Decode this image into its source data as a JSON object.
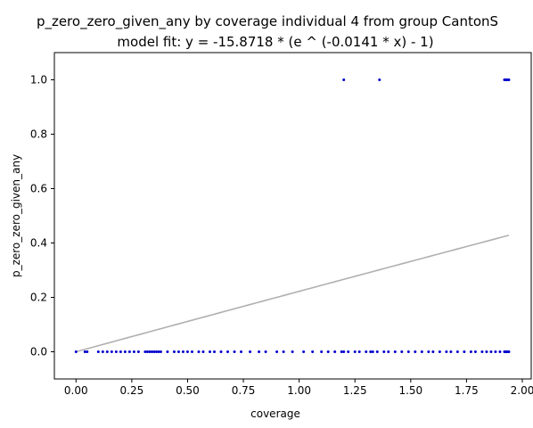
{
  "chart_data": {
    "type": "scatter",
    "title": "p_zero_zero_given_any by coverage individual 4 from group CantonS",
    "subtitle": "model fit: y = -15.8718 * (e ^ (-0.0141 * x) - 1)",
    "xlabel": "coverage",
    "ylabel": "p_zero_zero_given_any",
    "xlim": [
      -0.097,
      2.04
    ],
    "ylim": [
      -0.1,
      1.1
    ],
    "x_ticks": [
      0.0,
      0.25,
      0.5,
      0.75,
      1.0,
      1.25,
      1.5,
      1.75,
      2.0
    ],
    "x_tick_labels": [
      "0.00",
      "0.25",
      "0.50",
      "0.75",
      "1.00",
      "1.25",
      "1.50",
      "1.75",
      "2.00"
    ],
    "y_ticks": [
      0.0,
      0.2,
      0.4,
      0.6,
      0.8,
      1.0
    ],
    "y_tick_labels": [
      "0.0",
      "0.2",
      "0.4",
      "0.6",
      "0.8",
      "1.0"
    ],
    "grid": false,
    "point_color": "#0000cc",
    "line_color": "#b0b0b0",
    "fit": {
      "a": -15.8718,
      "b": -0.0141,
      "x_range": [
        0.0,
        1.94
      ]
    },
    "points": [
      {
        "x": 0.0,
        "y": 0.0
      },
      {
        "x": 0.04,
        "y": 0.0
      },
      {
        "x": 0.05,
        "y": 0.0
      },
      {
        "x": 0.1,
        "y": 0.0
      },
      {
        "x": 0.12,
        "y": 0.0
      },
      {
        "x": 0.14,
        "y": 0.0
      },
      {
        "x": 0.16,
        "y": 0.0
      },
      {
        "x": 0.18,
        "y": 0.0
      },
      {
        "x": 0.2,
        "y": 0.0
      },
      {
        "x": 0.22,
        "y": 0.0
      },
      {
        "x": 0.24,
        "y": 0.0
      },
      {
        "x": 0.26,
        "y": 0.0
      },
      {
        "x": 0.28,
        "y": 0.0
      },
      {
        "x": 0.31,
        "y": 0.0
      },
      {
        "x": 0.32,
        "y": 0.0
      },
      {
        "x": 0.33,
        "y": 0.0
      },
      {
        "x": 0.34,
        "y": 0.0
      },
      {
        "x": 0.35,
        "y": 0.0
      },
      {
        "x": 0.36,
        "y": 0.0
      },
      {
        "x": 0.37,
        "y": 0.0
      },
      {
        "x": 0.38,
        "y": 0.0
      },
      {
        "x": 0.41,
        "y": 0.0
      },
      {
        "x": 0.44,
        "y": 0.0
      },
      {
        "x": 0.46,
        "y": 0.0
      },
      {
        "x": 0.48,
        "y": 0.0
      },
      {
        "x": 0.5,
        "y": 0.0
      },
      {
        "x": 0.52,
        "y": 0.0
      },
      {
        "x": 0.55,
        "y": 0.0
      },
      {
        "x": 0.57,
        "y": 0.0
      },
      {
        "x": 0.6,
        "y": 0.0
      },
      {
        "x": 0.62,
        "y": 0.0
      },
      {
        "x": 0.65,
        "y": 0.0
      },
      {
        "x": 0.68,
        "y": 0.0
      },
      {
        "x": 0.71,
        "y": 0.0
      },
      {
        "x": 0.74,
        "y": 0.0
      },
      {
        "x": 0.78,
        "y": 0.0
      },
      {
        "x": 0.82,
        "y": 0.0
      },
      {
        "x": 0.85,
        "y": 0.0
      },
      {
        "x": 0.9,
        "y": 0.0
      },
      {
        "x": 0.93,
        "y": 0.0
      },
      {
        "x": 0.97,
        "y": 0.0
      },
      {
        "x": 1.02,
        "y": 0.0
      },
      {
        "x": 1.06,
        "y": 0.0
      },
      {
        "x": 1.1,
        "y": 0.0
      },
      {
        "x": 1.13,
        "y": 0.0
      },
      {
        "x": 1.16,
        "y": 0.0
      },
      {
        "x": 1.19,
        "y": 0.0
      },
      {
        "x": 1.2,
        "y": 0.0
      },
      {
        "x": 1.22,
        "y": 0.0
      },
      {
        "x": 1.25,
        "y": 0.0
      },
      {
        "x": 1.27,
        "y": 0.0
      },
      {
        "x": 1.3,
        "y": 0.0
      },
      {
        "x": 1.32,
        "y": 0.0
      },
      {
        "x": 1.33,
        "y": 0.0
      },
      {
        "x": 1.35,
        "y": 0.0
      },
      {
        "x": 1.38,
        "y": 0.0
      },
      {
        "x": 1.4,
        "y": 0.0
      },
      {
        "x": 1.43,
        "y": 0.0
      },
      {
        "x": 1.46,
        "y": 0.0
      },
      {
        "x": 1.49,
        "y": 0.0
      },
      {
        "x": 1.52,
        "y": 0.0
      },
      {
        "x": 1.55,
        "y": 0.0
      },
      {
        "x": 1.58,
        "y": 0.0
      },
      {
        "x": 1.6,
        "y": 0.0
      },
      {
        "x": 1.63,
        "y": 0.0
      },
      {
        "x": 1.66,
        "y": 0.0
      },
      {
        "x": 1.68,
        "y": 0.0
      },
      {
        "x": 1.71,
        "y": 0.0
      },
      {
        "x": 1.74,
        "y": 0.0
      },
      {
        "x": 1.77,
        "y": 0.0
      },
      {
        "x": 1.79,
        "y": 0.0
      },
      {
        "x": 1.82,
        "y": 0.0
      },
      {
        "x": 1.84,
        "y": 0.0
      },
      {
        "x": 1.86,
        "y": 0.0
      },
      {
        "x": 1.88,
        "y": 0.0
      },
      {
        "x": 1.9,
        "y": 0.0
      },
      {
        "x": 1.92,
        "y": 0.0
      },
      {
        "x": 1.925,
        "y": 0.0
      },
      {
        "x": 1.93,
        "y": 0.0
      },
      {
        "x": 1.935,
        "y": 0.0
      },
      {
        "x": 1.94,
        "y": 0.0
      },
      {
        "x": 1.2,
        "y": 1.0
      },
      {
        "x": 1.36,
        "y": 1.0
      },
      {
        "x": 1.92,
        "y": 1.0
      },
      {
        "x": 1.925,
        "y": 1.0
      },
      {
        "x": 1.93,
        "y": 1.0
      },
      {
        "x": 1.935,
        "y": 1.0
      },
      {
        "x": 1.94,
        "y": 1.0
      }
    ]
  }
}
